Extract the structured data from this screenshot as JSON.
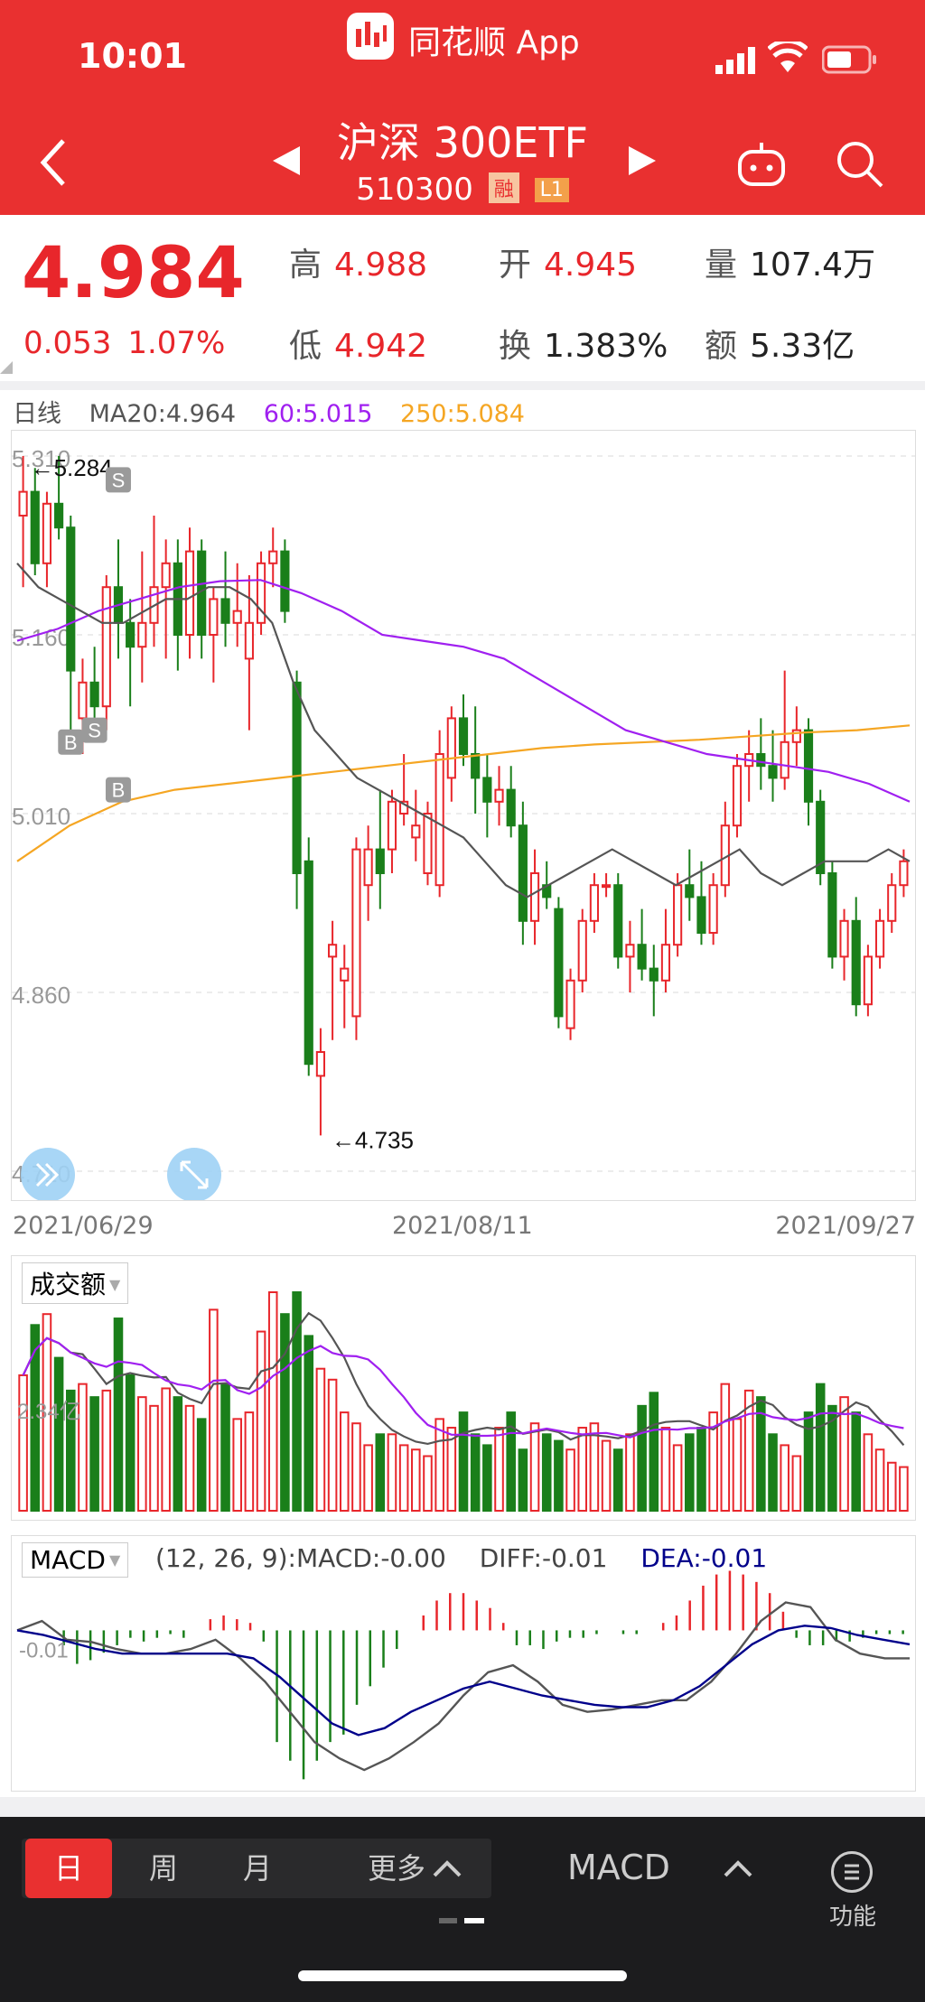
{
  "status": {
    "time": "10:01",
    "app": "同花顺 App"
  },
  "header": {
    "title": "沪深 300ETF",
    "code": "510300",
    "tag_rong": "融",
    "tag_level": "L1"
  },
  "quote": {
    "price": "4.984",
    "change": "0.053",
    "change_pct": "1.07%",
    "high_label": "高",
    "high": "4.988",
    "open_label": "开",
    "open": "4.945",
    "volume_label": "量",
    "volume": "107.4万",
    "low_label": "低",
    "low": "4.942",
    "turnover_label": "换",
    "turnover": "1.383%",
    "amount_label": "额",
    "amount": "5.33亿"
  },
  "ma": {
    "period": "日线",
    "ma20": "MA20:4.964",
    "ma60": "60:5.015",
    "ma250": "250:5.084"
  },
  "colors": {
    "up": "#e8262b",
    "down": "#1a7f1a",
    "ma20": "#555555",
    "ma60": "#a020f0",
    "ma250": "#f5a623",
    "macd_dea": "#00008b"
  },
  "chart_data": {
    "type": "candlestick",
    "title": "沪深 300ETF",
    "y_ticks": [
      "5.310",
      "5.160",
      "5.010",
      "4.860",
      "4.710"
    ],
    "ylim": [
      4.71,
      5.31
    ],
    "dates": [
      "2021/06/29",
      "2021/08/11",
      "2021/09/27"
    ],
    "annotations": {
      "high": "←5.284",
      "low": "←4.735"
    },
    "trade_marks": [
      {
        "label": "S",
        "index": 8,
        "price": 5.29
      },
      {
        "label": "B",
        "index": 4,
        "price": 5.07
      },
      {
        "label": "S",
        "index": 6,
        "price": 5.08
      },
      {
        "label": "B",
        "index": 8,
        "price": 5.03
      }
    ],
    "candles": [
      [
        5.26,
        5.31,
        5.2,
        5.28
      ],
      [
        5.28,
        5.3,
        5.21,
        5.22
      ],
      [
        5.22,
        5.28,
        5.2,
        5.27
      ],
      [
        5.27,
        5.31,
        5.24,
        5.25
      ],
      [
        5.25,
        5.26,
        5.08,
        5.13
      ],
      [
        5.09,
        5.14,
        5.06,
        5.12
      ],
      [
        5.12,
        5.15,
        5.08,
        5.1
      ],
      [
        5.1,
        5.21,
        5.08,
        5.2
      ],
      [
        5.2,
        5.24,
        5.14,
        5.17
      ],
      [
        5.17,
        5.19,
        5.1,
        5.15
      ],
      [
        5.15,
        5.23,
        5.12,
        5.17
      ],
      [
        5.17,
        5.26,
        5.15,
        5.2
      ],
      [
        5.2,
        5.24,
        5.14,
        5.22
      ],
      [
        5.22,
        5.24,
        5.13,
        5.16
      ],
      [
        5.16,
        5.25,
        5.14,
        5.23
      ],
      [
        5.23,
        5.24,
        5.14,
        5.16
      ],
      [
        5.16,
        5.2,
        5.12,
        5.19
      ],
      [
        5.19,
        5.23,
        5.15,
        5.17
      ],
      [
        5.17,
        5.22,
        5.15,
        5.18
      ],
      [
        5.14,
        5.21,
        5.08,
        5.17
      ],
      [
        5.17,
        5.23,
        5.16,
        5.22
      ],
      [
        5.22,
        5.25,
        5.2,
        5.23
      ],
      [
        5.23,
        5.24,
        5.17,
        5.18
      ],
      [
        5.12,
        5.13,
        4.93,
        4.96
      ],
      [
        4.97,
        4.99,
        4.79,
        4.8
      ],
      [
        4.79,
        4.83,
        4.74,
        4.81
      ],
      [
        4.89,
        4.92,
        4.82,
        4.9
      ],
      [
        4.87,
        4.9,
        4.83,
        4.88
      ],
      [
        4.84,
        4.99,
        4.82,
        4.98
      ],
      [
        4.95,
        5.0,
        4.92,
        4.98
      ],
      [
        4.98,
        5.03,
        4.93,
        4.96
      ],
      [
        4.98,
        5.03,
        4.96,
        5.02
      ],
      [
        5.01,
        5.06,
        5.0,
        5.02
      ],
      [
        4.99,
        5.03,
        4.97,
        5.0
      ],
      [
        4.96,
        5.02,
        4.95,
        5.01
      ],
      [
        4.95,
        5.08,
        4.94,
        5.06
      ],
      [
        5.04,
        5.1,
        5.02,
        5.09
      ],
      [
        5.09,
        5.11,
        5.05,
        5.06
      ],
      [
        5.06,
        5.1,
        5.01,
        5.04
      ],
      [
        5.04,
        5.06,
        4.99,
        5.02
      ],
      [
        5.02,
        5.05,
        5.0,
        5.03
      ],
      [
        5.03,
        5.05,
        4.99,
        5.0
      ],
      [
        5.0,
        5.02,
        4.9,
        4.92
      ],
      [
        4.92,
        4.98,
        4.9,
        4.96
      ],
      [
        4.95,
        4.97,
        4.93,
        4.94
      ],
      [
        4.93,
        4.94,
        4.83,
        4.84
      ],
      [
        4.83,
        4.88,
        4.82,
        4.87
      ],
      [
        4.87,
        4.93,
        4.86,
        4.92
      ],
      [
        4.92,
        4.96,
        4.91,
        4.95
      ],
      [
        4.95,
        4.96,
        4.94,
        4.95
      ],
      [
        4.95,
        4.96,
        4.88,
        4.89
      ],
      [
        4.89,
        4.92,
        4.86,
        4.9
      ],
      [
        4.9,
        4.93,
        4.87,
        4.88
      ],
      [
        4.88,
        4.9,
        4.84,
        4.87
      ],
      [
        4.87,
        4.93,
        4.86,
        4.9
      ],
      [
        4.9,
        4.96,
        4.89,
        4.95
      ],
      [
        4.95,
        4.98,
        4.92,
        4.94
      ],
      [
        4.94,
        4.97,
        4.9,
        4.91
      ],
      [
        4.91,
        4.96,
        4.9,
        4.95
      ],
      [
        4.95,
        5.02,
        4.94,
        5.0
      ],
      [
        5.0,
        5.06,
        4.99,
        5.05
      ],
      [
        5.05,
        5.08,
        5.02,
        5.06
      ],
      [
        5.06,
        5.09,
        5.03,
        5.05
      ],
      [
        5.05,
        5.08,
        5.02,
        5.04
      ],
      [
        5.04,
        5.13,
        5.03,
        5.07
      ],
      [
        5.07,
        5.1,
        5.05,
        5.08
      ],
      [
        5.08,
        5.09,
        5.0,
        5.02
      ],
      [
        5.02,
        5.03,
        4.95,
        4.96
      ],
      [
        4.96,
        4.97,
        4.88,
        4.89
      ],
      [
        4.89,
        4.93,
        4.87,
        4.92
      ],
      [
        4.92,
        4.94,
        4.84,
        4.85
      ],
      [
        4.85,
        4.9,
        4.84,
        4.89
      ],
      [
        4.89,
        4.93,
        4.88,
        4.92
      ],
      [
        4.92,
        4.96,
        4.91,
        4.95
      ],
      [
        4.95,
        4.98,
        4.94,
        4.97
      ]
    ],
    "ma20": [
      5.22,
      5.2,
      5.19,
      5.18,
      5.17,
      5.17,
      5.18,
      5.19,
      5.19,
      5.2,
      5.2,
      5.19,
      5.17,
      5.12,
      5.08,
      5.06,
      5.04,
      5.03,
      5.02,
      5.01,
      5.0,
      4.99,
      4.97,
      4.95,
      4.94,
      4.95,
      4.96,
      4.97,
      4.98,
      4.97,
      4.96,
      4.95,
      4.96,
      4.97,
      4.98,
      4.96,
      4.95,
      4.96,
      4.97,
      4.97,
      4.97,
      4.98,
      4.97
    ],
    "ma60": [
      5.155,
      5.165,
      5.18,
      5.19,
      5.2,
      5.205,
      5.206,
      5.195,
      5.18,
      5.16,
      5.155,
      5.15,
      5.14,
      5.12,
      5.1,
      5.08,
      5.07,
      5.06,
      5.055,
      5.05,
      5.045,
      5.035,
      5.02
    ],
    "ma250": [
      4.97,
      5.0,
      5.02,
      5.03,
      5.035,
      5.04,
      5.045,
      5.05,
      5.055,
      5.06,
      5.065,
      5.068,
      5.07,
      5.072,
      5.075,
      5.078,
      5.08,
      5.084
    ],
    "volume_title": "成交额",
    "volume_label": "2.34亿",
    "volume": [
      0.62,
      0.85,
      0.9,
      0.7,
      0.55,
      0.58,
      0.52,
      0.55,
      0.88,
      0.62,
      0.52,
      0.48,
      0.56,
      0.52,
      0.48,
      0.42,
      0.92,
      0.58,
      0.42,
      0.45,
      0.82,
      1.0,
      0.9,
      1.0,
      0.8,
      0.65,
      0.6,
      0.45,
      0.4,
      0.3,
      0.35,
      0.35,
      0.3,
      0.28,
      0.25,
      0.42,
      0.38,
      0.45,
      0.35,
      0.3,
      0.38,
      0.45,
      0.28,
      0.4,
      0.35,
      0.32,
      0.28,
      0.38,
      0.4,
      0.32,
      0.28,
      0.35,
      0.48,
      0.54,
      0.38,
      0.3,
      0.35,
      0.38,
      0.45,
      0.58,
      0.42,
      0.55,
      0.52,
      0.35,
      0.3,
      0.25,
      0.45,
      0.58,
      0.48,
      0.52,
      0.45,
      0.35,
      0.28,
      0.22,
      0.2
    ],
    "macd_title": "MACD",
    "macd_params": "(12, 26, 9):MACD:-0.00",
    "diff": "DIFF:-0.01",
    "dea": "DEA:-0.01",
    "macd_ytick": "-0.01",
    "macd_hist": [
      0.0,
      0.0,
      0.0,
      -0.004,
      -0.009,
      -0.008,
      -0.006,
      -0.004,
      -0.002,
      -0.003,
      -0.002,
      -0.001,
      -0.002,
      0.0,
      0.003,
      0.004,
      0.003,
      0.002,
      -0.003,
      -0.03,
      -0.035,
      -0.04,
      -0.035,
      -0.03,
      -0.028,
      -0.02,
      -0.015,
      -0.01,
      -0.005,
      0.0,
      0.004,
      0.008,
      0.01,
      0.01,
      0.008,
      0.006,
      0.002,
      -0.004,
      -0.004,
      -0.005,
      -0.003,
      -0.002,
      -0.002,
      -0.001,
      0.0,
      -0.001,
      -0.001,
      0.0,
      0.002,
      0.004,
      0.008,
      0.012,
      0.015,
      0.016,
      0.015,
      0.013,
      0.01,
      0.005,
      -0.002,
      -0.004,
      -0.004,
      -0.003,
      -0.003,
      -0.002,
      -0.001,
      -0.001,
      -0.001
    ],
    "macd_diff_line": [
      0.0,
      0.004,
      -0.004,
      -0.005,
      -0.008,
      -0.01,
      -0.01,
      -0.008,
      -0.004,
      -0.012,
      -0.022,
      -0.035,
      -0.048,
      -0.055,
      -0.06,
      -0.055,
      -0.048,
      -0.04,
      -0.028,
      -0.018,
      -0.015,
      -0.022,
      -0.032,
      -0.035,
      -0.034,
      -0.032,
      -0.03,
      -0.03,
      -0.022,
      -0.01,
      0.004,
      0.012,
      0.01,
      -0.004,
      -0.01,
      -0.012,
      -0.012
    ],
    "macd_dea_line": [
      0.0,
      -0.002,
      -0.005,
      -0.008,
      -0.01,
      -0.01,
      -0.01,
      -0.01,
      -0.01,
      -0.012,
      -0.02,
      -0.03,
      -0.04,
      -0.045,
      -0.042,
      -0.035,
      -0.03,
      -0.025,
      -0.022,
      -0.025,
      -0.028,
      -0.03,
      -0.032,
      -0.033,
      -0.033,
      -0.03,
      -0.024,
      -0.015,
      -0.006,
      0.0,
      0.002,
      0.001,
      -0.002,
      -0.004,
      -0.006
    ]
  },
  "bottom": {
    "tab_day": "日",
    "tab_week": "周",
    "tab_month": "月",
    "tab_more": "更多",
    "indicator": "MACD",
    "function": "功能"
  }
}
